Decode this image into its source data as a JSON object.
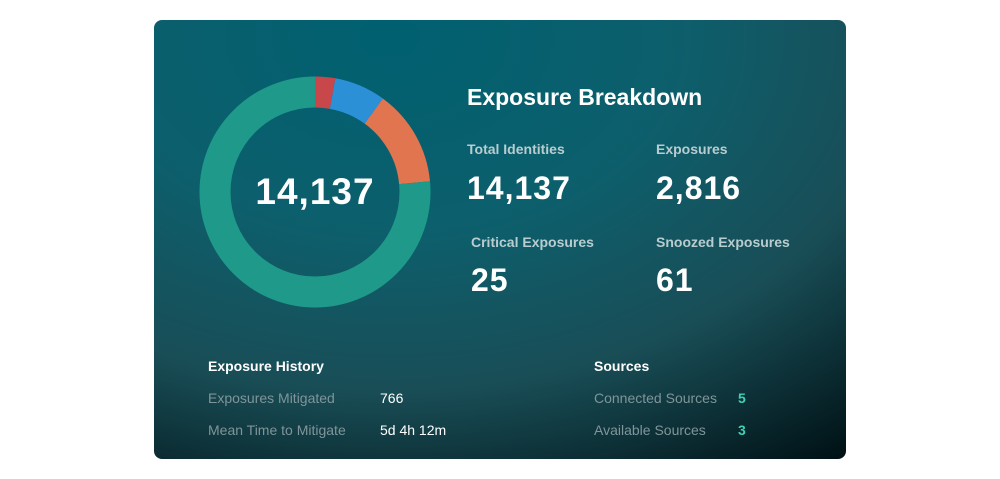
{
  "card": {
    "title": "Exposure Breakdown",
    "donut": {
      "center_value": "14,137",
      "segments": [
        {
          "name": "critical",
          "color": "#c8474b",
          "fraction": 0.0282
        },
        {
          "name": "high",
          "color": "#2b90d6",
          "fraction": 0.0718
        },
        {
          "name": "medium",
          "color": "#e07550",
          "fraction": 0.135
        },
        {
          "name": "unexposed",
          "color": "#1f9a8a",
          "fraction": 0.765
        }
      ]
    },
    "stats": {
      "total_identities": {
        "label": "Total Identities",
        "value": "14,137"
      },
      "exposures": {
        "label": "Exposures",
        "value": "2,816"
      },
      "critical_exposures": {
        "label": "Critical Exposures",
        "value": "25"
      },
      "snoozed_exposures": {
        "label": "Snoozed Exposures",
        "value": "61"
      }
    },
    "history": {
      "title": "Exposure History",
      "rows": [
        {
          "label": "Exposures Mitigated",
          "value": "766"
        },
        {
          "label": "Mean Time to Mitigate",
          "value": "5d 4h 12m"
        }
      ]
    },
    "sources": {
      "title": "Sources",
      "accent_color": "#3fd0b6",
      "rows": [
        {
          "label": "Connected Sources",
          "value": "5"
        },
        {
          "label": "Available Sources",
          "value": "3"
        }
      ]
    }
  }
}
